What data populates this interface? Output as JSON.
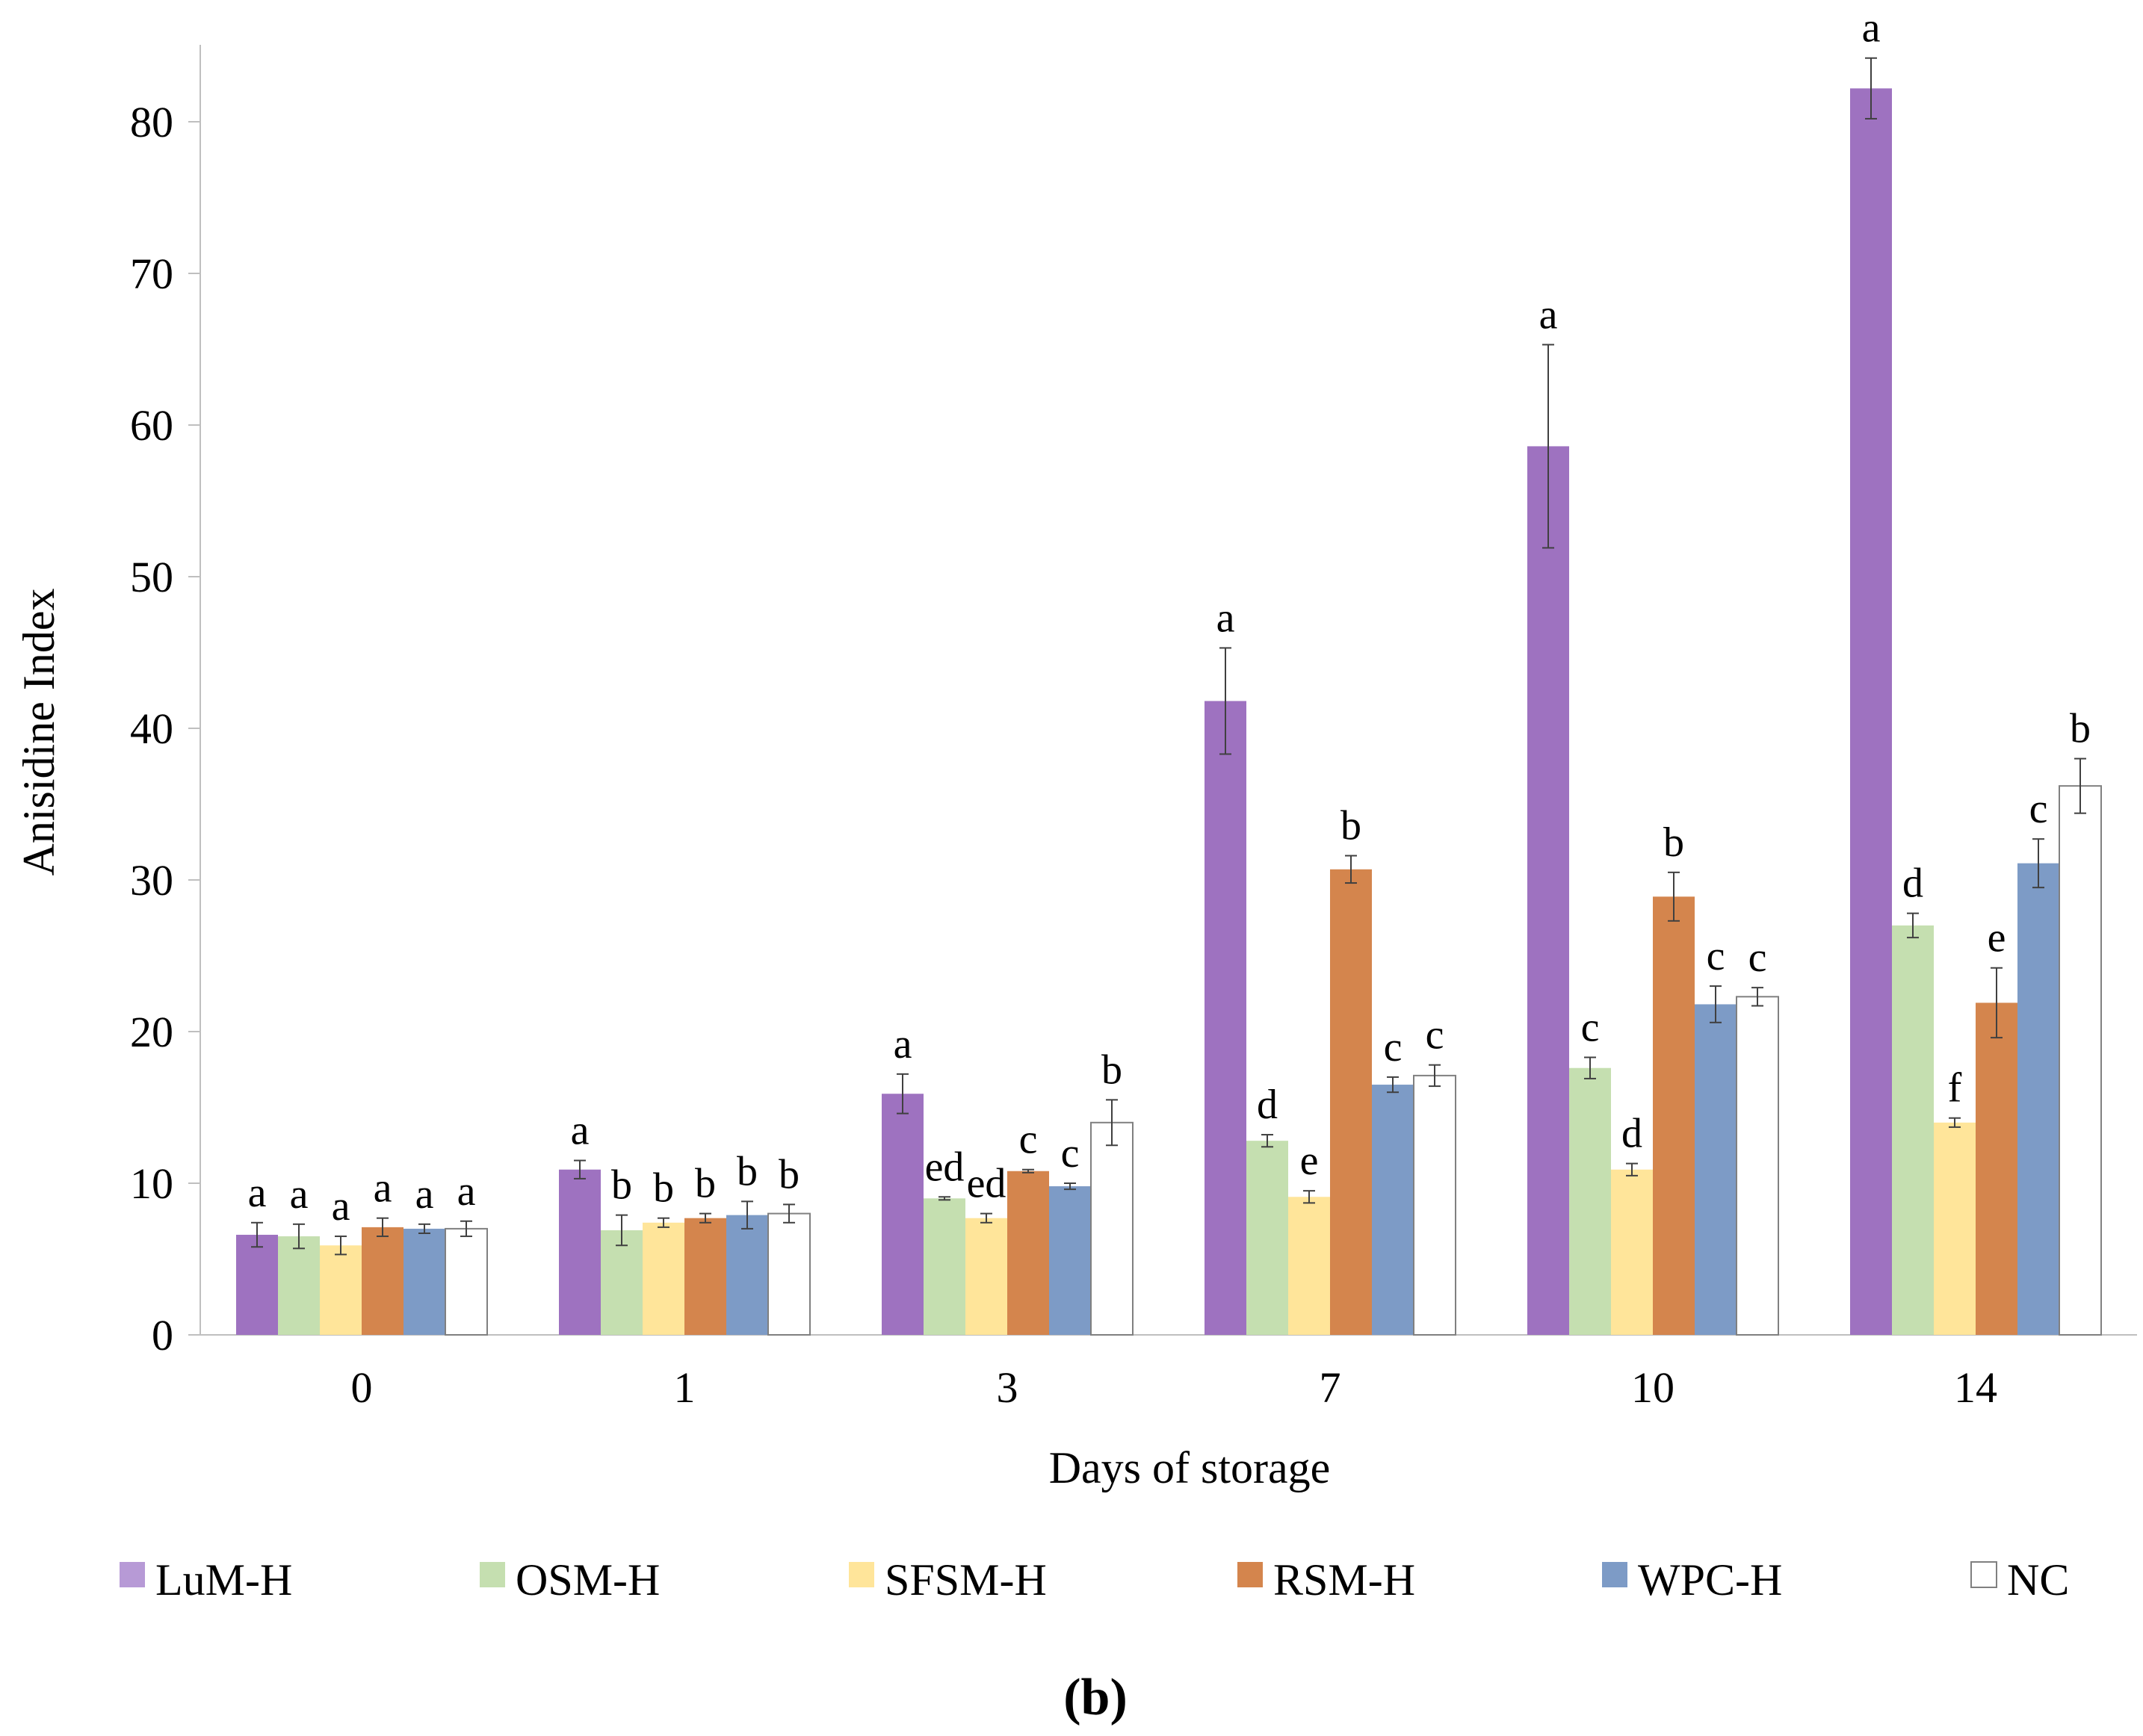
{
  "chart_data": {
    "type": "bar",
    "title": "",
    "xlabel": "Days of storage",
    "ylabel": "Anisidine Index",
    "ylim": [
      0,
      85
    ],
    "yticks": [
      0,
      10,
      20,
      30,
      40,
      50,
      60,
      70,
      80
    ],
    "grid": false,
    "legend_position": "bottom",
    "categories": [
      "0",
      "1",
      "3",
      "7",
      "10",
      "14"
    ],
    "series": [
      {
        "name": "LuM-H",
        "color": "#9E72C0",
        "values": [
          6.6,
          10.9,
          15.9,
          41.8,
          58.6,
          82.2
        ],
        "errors": [
          0.8,
          0.6,
          1.3,
          3.5,
          6.7,
          2.0
        ],
        "labels": [
          "a",
          "a",
          "a",
          "a",
          "a",
          "a"
        ]
      },
      {
        "name": "OSM-H",
        "color": "#C5DFB0",
        "values": [
          6.5,
          6.9,
          9.0,
          12.8,
          17.6,
          27.0
        ],
        "errors": [
          0.8,
          1.0,
          0.1,
          0.4,
          0.7,
          0.8
        ],
        "labels": [
          "a",
          "b",
          "ed",
          "d",
          "c",
          "d"
        ]
      },
      {
        "name": "SFSM-H",
        "color": "#FFE59A",
        "values": [
          5.9,
          7.4,
          7.7,
          9.1,
          10.9,
          14.0
        ],
        "errors": [
          0.6,
          0.3,
          0.3,
          0.4,
          0.4,
          0.3
        ],
        "labels": [
          "a",
          "b",
          "ed",
          "e",
          "d",
          "f"
        ]
      },
      {
        "name": "RSM-H",
        "color": "#D4854D",
        "values": [
          7.1,
          7.7,
          10.8,
          30.7,
          28.9,
          21.9
        ],
        "errors": [
          0.6,
          0.3,
          0.1,
          0.9,
          1.6,
          2.3
        ],
        "labels": [
          "a",
          "b",
          "c",
          "b",
          "b",
          "e"
        ]
      },
      {
        "name": "WPC-H",
        "color": "#7D9BC6",
        "values": [
          7.0,
          7.9,
          9.8,
          16.5,
          21.8,
          31.1
        ],
        "errors": [
          0.3,
          0.9,
          0.2,
          0.5,
          1.2,
          1.6
        ],
        "labels": [
          "a",
          "b",
          "c",
          "c",
          "c",
          "c"
        ]
      },
      {
        "name": "NC",
        "color": "#FFFFFF",
        "values": [
          7.0,
          8.0,
          14.0,
          17.1,
          22.3,
          36.2
        ],
        "errors": [
          0.5,
          0.6,
          1.5,
          0.7,
          0.6,
          1.8
        ],
        "labels": [
          "a",
          "b",
          "b",
          "c",
          "c",
          "b"
        ]
      }
    ],
    "caption": "(b)"
  }
}
